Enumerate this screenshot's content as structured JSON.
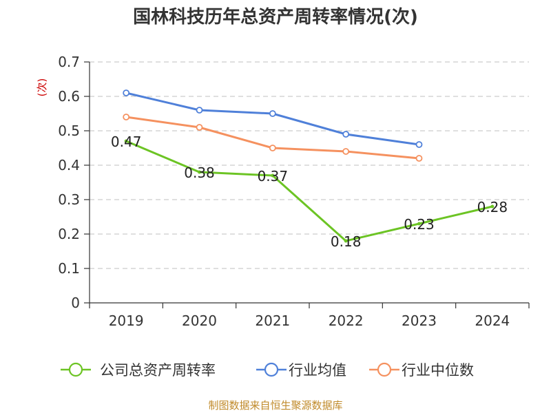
{
  "chart_data": {
    "type": "line",
    "title": "国林科技历年总资产周转率情况(次)",
    "ylabel": "(次)",
    "xlabel": "",
    "categories": [
      "2019",
      "2020",
      "2021",
      "2022",
      "2023",
      "2024"
    ],
    "ylim": [
      0,
      0.7
    ],
    "yticks": [
      0,
      0.1,
      0.2,
      0.3,
      0.4,
      0.5,
      0.6,
      0.7
    ],
    "ytick_labels": [
      "0",
      "0.1",
      "0.2",
      "0.3",
      "0.4",
      "0.5",
      "0.6",
      "0.7"
    ],
    "grid": true,
    "legend_position": "bottom",
    "series": [
      {
        "name": "公司总资产周转率",
        "color": "#6cc424",
        "values": [
          0.47,
          0.38,
          0.37,
          0.18,
          0.23,
          0.28
        ],
        "data_labels": [
          "0.47",
          "0.38",
          "0.37",
          "0.18",
          "0.23",
          "0.28"
        ]
      },
      {
        "name": "行业均值",
        "color": "#4f80d9",
        "values": [
          0.61,
          0.56,
          0.55,
          0.49,
          0.46,
          null
        ]
      },
      {
        "name": "行业中位数",
        "color": "#f5915f",
        "values": [
          0.54,
          0.51,
          0.45,
          0.44,
          0.42,
          null
        ]
      }
    ]
  },
  "source_note": "制图数据来自恒生聚源数据库"
}
